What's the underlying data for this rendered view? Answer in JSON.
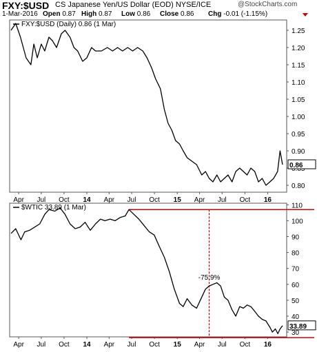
{
  "header": {
    "symbol": "FXY:$USD",
    "description": "CS Japanese Yen/US Dollar (EOD) NYSE/ICE",
    "watermark": "@StockCharts.com",
    "date": "1-Mar-2016",
    "open_label": "Open",
    "open": "0.87",
    "high_label": "High",
    "high": "0.87",
    "low_label": "Low",
    "low": "0.86",
    "close_label": "Close",
    "close": "0.86",
    "chg_label": "Chg",
    "chg": "-0.01 (-1.15%)",
    "down_color": "#cc0000"
  },
  "chart_data": [
    {
      "type": "line",
      "legend": "FXY:$USD (Daily) 0.86 (1 Mar)",
      "last_value_label": "0.86",
      "ylim": [
        0.78,
        1.28
      ],
      "yticks": [
        "0.80",
        "0.85",
        "0.90",
        "0.95",
        "1.00",
        "1.05",
        "1.10",
        "1.15",
        "1.20",
        "1.25"
      ],
      "x_ticks": [
        "Apr",
        "Jul",
        "Oct",
        "14",
        "Apr",
        "Jul",
        "Oct",
        "15",
        "Apr",
        "Jul",
        "Oct",
        "16"
      ],
      "series": [
        {
          "x": [
            "2013-03-01",
            "2013-03-20",
            "2013-04-08",
            "2013-05-01",
            "2013-05-20",
            "2013-06-01",
            "2013-06-15",
            "2013-07-01",
            "2013-07-15",
            "2013-08-01",
            "2013-08-15",
            "2013-09-01",
            "2013-09-20",
            "2013-10-05",
            "2013-10-25",
            "2013-11-10",
            "2013-11-25",
            "2013-12-15",
            "2014-01-01",
            "2014-01-20",
            "2014-02-05",
            "2014-03-01",
            "2014-03-25",
            "2014-04-15",
            "2014-05-05",
            "2014-05-25",
            "2014-06-15",
            "2014-07-05",
            "2014-07-25",
            "2014-08-15",
            "2014-09-01",
            "2014-09-20",
            "2014-10-05",
            "2014-10-25",
            "2014-11-10",
            "2014-11-25",
            "2014-12-10",
            "2014-12-25",
            "2015-01-10",
            "2015-01-25",
            "2015-02-10",
            "2015-03-01",
            "2015-03-20",
            "2015-04-10",
            "2015-04-25",
            "2015-05-10",
            "2015-05-25",
            "2015-06-10",
            "2015-06-25",
            "2015-07-10",
            "2015-07-25",
            "2015-08-10",
            "2015-08-25",
            "2015-09-10",
            "2015-09-25",
            "2015-10-10",
            "2015-10-25",
            "2015-11-10",
            "2015-11-25",
            "2015-12-10",
            "2015-12-25",
            "2016-01-10",
            "2016-01-25",
            "2016-02-10",
            "2016-02-20",
            "2016-03-01"
          ],
          "y": [
            1.25,
            1.27,
            1.23,
            1.17,
            1.15,
            1.21,
            1.17,
            1.21,
            1.19,
            1.23,
            1.22,
            1.2,
            1.24,
            1.25,
            1.23,
            1.2,
            1.19,
            1.16,
            1.17,
            1.2,
            1.19,
            1.19,
            1.2,
            1.19,
            1.2,
            1.19,
            1.2,
            1.19,
            1.2,
            1.19,
            1.17,
            1.14,
            1.11,
            1.08,
            1.02,
            0.98,
            0.96,
            0.93,
            0.92,
            0.9,
            0.88,
            0.87,
            0.86,
            0.83,
            0.84,
            0.82,
            0.81,
            0.83,
            0.81,
            0.82,
            0.83,
            0.81,
            0.84,
            0.85,
            0.84,
            0.83,
            0.85,
            0.84,
            0.81,
            0.82,
            0.8,
            0.81,
            0.82,
            0.84,
            0.9,
            0.86
          ]
        }
      ]
    },
    {
      "type": "line",
      "legend": "$WTIC 33.89 (1 Mar)",
      "last_value_label": "33.89",
      "ylim": [
        27,
        111
      ],
      "yticks": [
        "30",
        "40",
        "50",
        "60",
        "70",
        "80",
        "90",
        "100",
        "110"
      ],
      "x_ticks": [
        "Apr",
        "Jul",
        "Oct",
        "14",
        "Apr",
        "Jul",
        "Oct",
        "15",
        "Apr",
        "Jul",
        "Oct",
        "16"
      ],
      "annotation": "-75.9%",
      "series": [
        {
          "x": [
            "2013-03-01",
            "2013-03-20",
            "2013-04-10",
            "2013-04-25",
            "2013-05-15",
            "2013-06-05",
            "2013-06-25",
            "2013-07-15",
            "2013-08-01",
            "2013-08-25",
            "2013-09-15",
            "2013-10-05",
            "2013-10-25",
            "2013-11-15",
            "2013-12-05",
            "2013-12-25",
            "2014-01-15",
            "2014-02-05",
            "2014-02-25",
            "2014-03-15",
            "2014-04-05",
            "2014-04-25",
            "2014-05-15",
            "2014-06-05",
            "2014-06-20",
            "2014-07-10",
            "2014-07-30",
            "2014-08-20",
            "2014-09-10",
            "2014-09-30",
            "2014-10-20",
            "2014-11-10",
            "2014-11-30",
            "2014-12-20",
            "2015-01-10",
            "2015-01-25",
            "2015-02-10",
            "2015-03-01",
            "2015-03-20",
            "2015-04-10",
            "2015-04-25",
            "2015-05-10",
            "2015-05-25",
            "2015-06-10",
            "2015-06-25",
            "2015-07-10",
            "2015-07-25",
            "2015-08-10",
            "2015-08-25",
            "2015-09-10",
            "2015-09-25",
            "2015-10-10",
            "2015-10-25",
            "2015-11-10",
            "2015-11-25",
            "2015-12-10",
            "2015-12-25",
            "2016-01-10",
            "2016-01-20",
            "2016-02-01",
            "2016-02-11",
            "2016-02-20",
            "2016-03-01"
          ],
          "y": [
            92,
            95,
            88,
            93,
            94,
            96,
            98,
            104,
            107,
            106,
            108,
            104,
            98,
            95,
            96,
            99,
            94,
            98,
            101,
            100,
            101,
            100,
            102,
            103,
            107,
            104,
            101,
            97,
            93,
            91,
            84,
            77,
            68,
            57,
            48,
            46,
            51,
            47,
            45,
            52,
            57,
            59,
            60,
            61,
            59,
            52,
            50,
            44,
            40,
            46,
            45,
            47,
            46,
            43,
            40,
            38,
            37,
            33,
            30,
            32,
            29,
            32,
            34
          ]
        }
      ],
      "reference_levels": [
        107,
        26.5
      ]
    }
  ]
}
